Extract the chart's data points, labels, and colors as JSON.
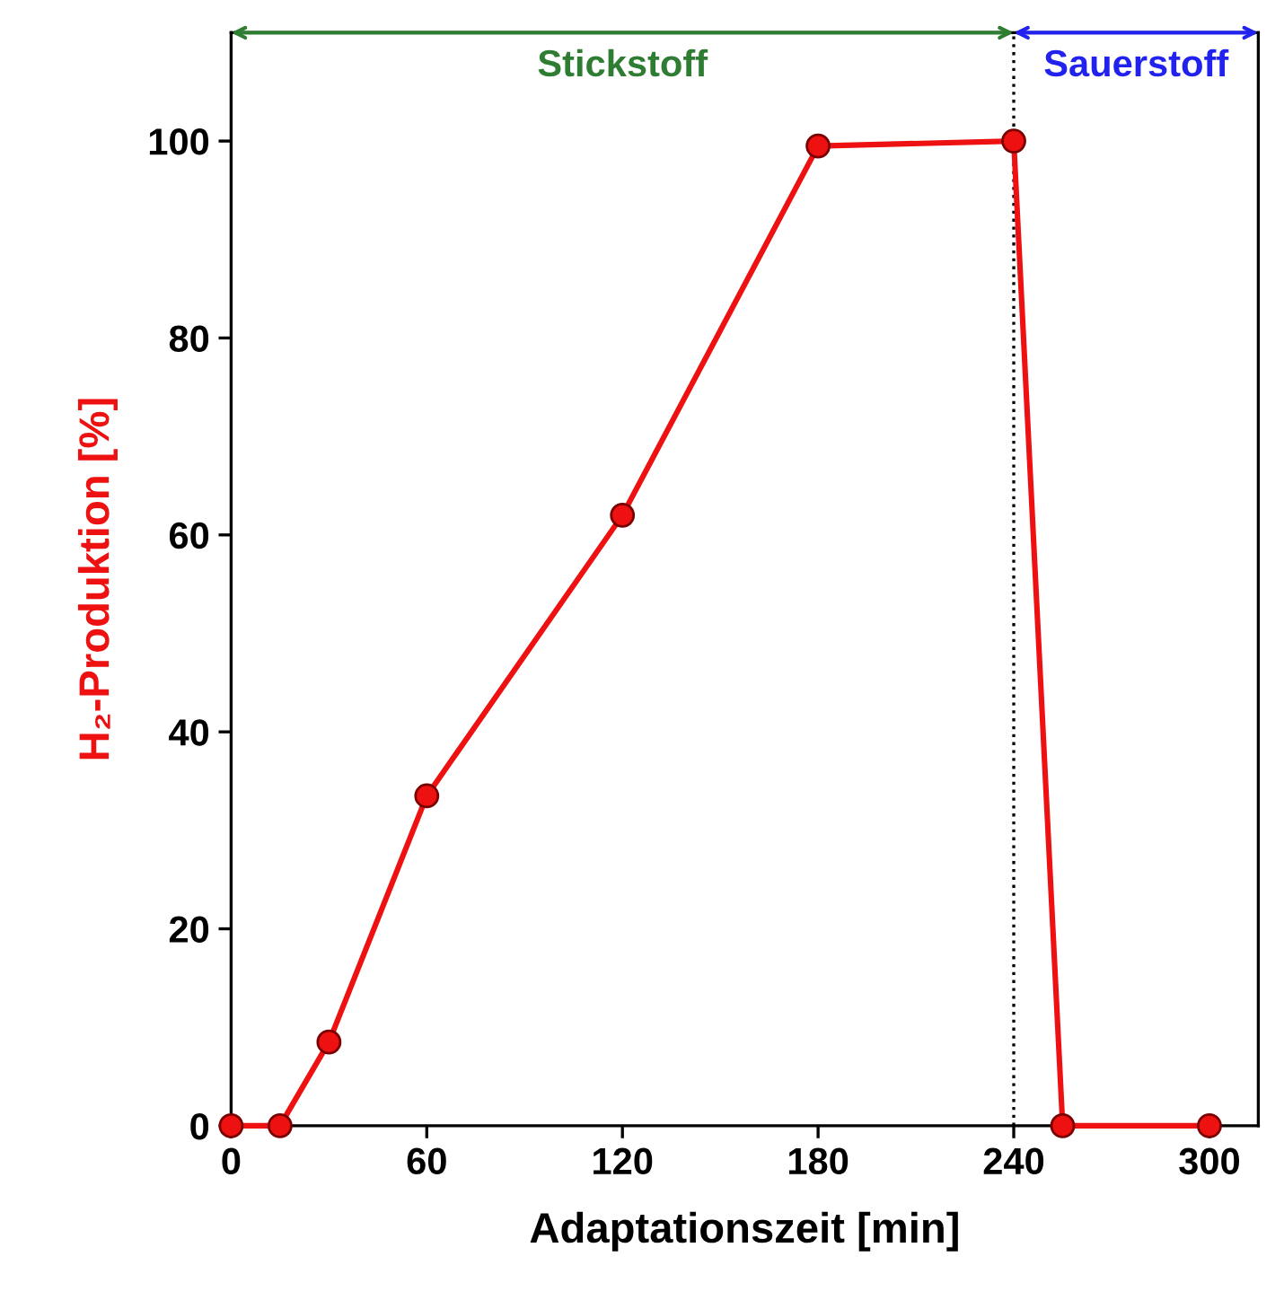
{
  "chart_data": {
    "type": "line",
    "xlabel": "Adaptationszeit [min]",
    "ylabel": "H₂-Produktion [%]",
    "x": [
      0,
      15,
      30,
      60,
      120,
      180,
      240,
      255,
      300
    ],
    "series": [
      {
        "color": "#ee1111",
        "values": [
          0,
          0,
          8.5,
          33.5,
          62,
          99.5,
          100,
          0,
          0
        ]
      }
    ],
    "xlim": [
      0,
      315
    ],
    "ylim": [
      0,
      111
    ],
    "xticks": [
      0,
      60,
      120,
      180,
      240,
      300
    ],
    "yticks": [
      0,
      20,
      40,
      60,
      80,
      100
    ],
    "marker": "circle",
    "line_style": "solid",
    "grid": false,
    "legend": false,
    "ref_lines": [
      {
        "axis": "x",
        "value": 240,
        "color": "#000000",
        "line_style": "dotted"
      }
    ],
    "annotations": [
      "Stickstoff",
      "Sauerstoff"
    ]
  }
}
